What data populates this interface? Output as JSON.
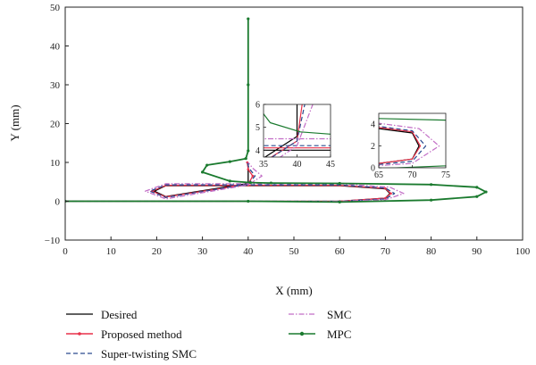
{
  "chart_data": {
    "type": "line",
    "xlabel": "X (mm)",
    "ylabel": "Y (mm)",
    "xlim": [
      0,
      100
    ],
    "ylim": [
      -10,
      50
    ],
    "xticks": [
      "0",
      "10",
      "20",
      "30",
      "40",
      "50",
      "60",
      "70",
      "80",
      "90",
      "100"
    ],
    "yticks": [
      "50",
      "40",
      "30",
      "20",
      "10",
      "0",
      "−10"
    ],
    "grid": false,
    "legend_position": "bottom",
    "series": [
      {
        "name": "Desired",
        "color": "#000000",
        "style": "solid",
        "x": [
          0,
          40,
          60,
          70,
          71,
          70,
          60,
          40,
          22,
          19.5,
          22,
          40,
          40
        ],
        "y": [
          0,
          0,
          0,
          0.8,
          2,
          3.2,
          4,
          4,
          4,
          2.6,
          1.2,
          4.6,
          10
        ]
      },
      {
        "name": "Proposed method",
        "color": "#e8314a",
        "style": "solid-dot",
        "x": [
          0,
          40,
          60,
          70,
          71.2,
          70,
          60,
          40,
          22,
          19,
          22,
          40,
          41,
          40,
          39.8
        ],
        "y": [
          0,
          0,
          0,
          0.8,
          2,
          3.3,
          4.1,
          4.1,
          4.1,
          2.6,
          1.1,
          4.4,
          6.5,
          8.2,
          10
        ]
      },
      {
        "name": "Super-twisting SMC",
        "color": "#2b4a8f",
        "style": "dashed",
        "x": [
          0,
          40,
          60,
          70,
          72,
          70,
          60,
          40,
          22,
          18.5,
          22,
          40,
          41.5,
          40.2,
          39.8
        ],
        "y": [
          0,
          0,
          0,
          0.6,
          2,
          3.4,
          4.2,
          4.2,
          4.2,
          2.6,
          1.0,
          4.4,
          6.5,
          8.5,
          10
        ]
      },
      {
        "name": "SMC",
        "color": "#c26ec6",
        "style": "dashdot",
        "x": [
          0,
          40,
          60,
          70,
          74,
          71,
          60,
          40,
          22,
          17.5,
          22,
          40,
          43,
          41,
          40
        ],
        "y": [
          0,
          0,
          0,
          0.4,
          2,
          3.6,
          4.5,
          4.5,
          4.5,
          2.6,
          0.6,
          4.2,
          6.5,
          8.5,
          10
        ]
      },
      {
        "name": "MPC",
        "color": "#1a7a2e",
        "style": "solid-dot",
        "x": [
          0,
          40,
          60,
          80,
          90,
          92,
          90,
          80,
          60,
          45,
          40.5,
          36,
          30,
          31,
          36,
          39.5,
          40,
          40,
          40
        ],
        "y": [
          0,
          0,
          -0.2,
          0.3,
          1.2,
          2.4,
          3.6,
          4.3,
          4.6,
          4.7,
          4.8,
          5.2,
          7.5,
          9.3,
          10.2,
          11,
          13,
          30,
          47
        ]
      }
    ],
    "insets": [
      {
        "xlim": [
          35,
          45
        ],
        "ylim": [
          3.7,
          6
        ],
        "xticks": [
          "35",
          "40",
          "45"
        ],
        "yticks": [
          "6",
          "5",
          "4"
        ]
      },
      {
        "xlim": [
          65,
          75
        ],
        "ylim": [
          0,
          5
        ],
        "xticks": [
          "65",
          "70",
          "75"
        ],
        "yticks": [
          "4",
          "2",
          "0"
        ]
      }
    ]
  }
}
